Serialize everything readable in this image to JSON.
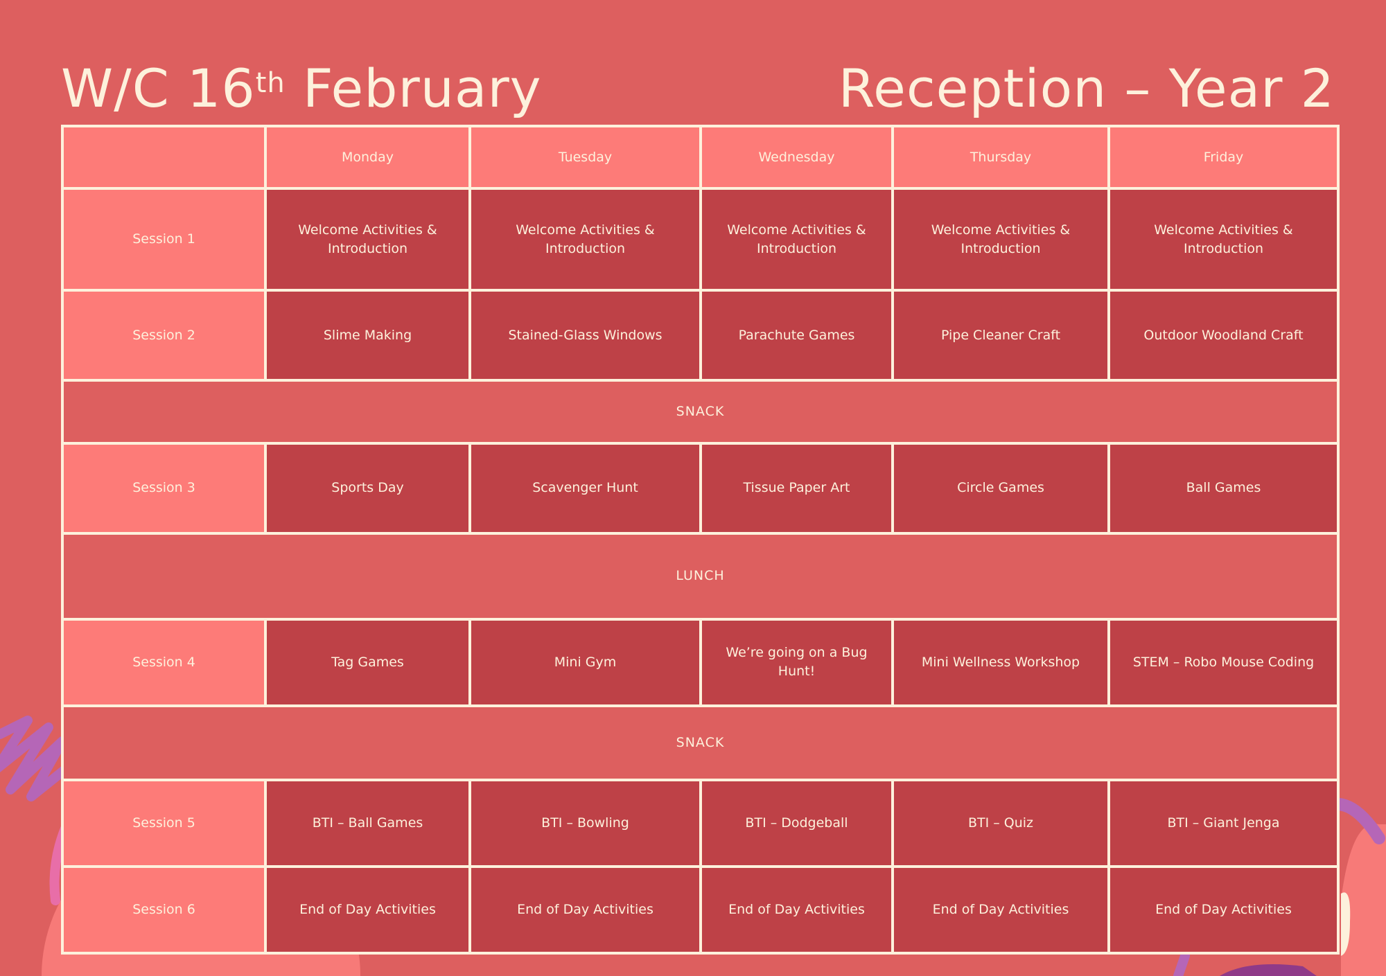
{
  "header": {
    "title_prefix": "W/C 16",
    "title_superscript": "th",
    "title_suffix": " February",
    "group": "Reception – Year 2"
  },
  "colors": {
    "background": "#dd5f5f",
    "header_cell": "#fd7b78",
    "activity_cell": "#be4147",
    "text": "#fdf1dc"
  },
  "days": [
    "Monday",
    "Tuesday",
    "Wednesday",
    "Thursday",
    "Friday"
  ],
  "rows": [
    {
      "type": "session",
      "label": "Session 1",
      "activities": [
        "Welcome Activities & Introduction",
        "Welcome Activities & Introduction",
        "Welcome Activities & Introduction",
        "Welcome Activities & Introduction",
        "Welcome Activities & Introduction"
      ]
    },
    {
      "type": "session",
      "label": "Session 2",
      "activities": [
        "Slime Making",
        "Stained-Glass Windows",
        "Parachute Games",
        "Pipe Cleaner Craft",
        "Outdoor Woodland Craft"
      ]
    },
    {
      "type": "break",
      "label": "SNACK"
    },
    {
      "type": "session",
      "label": "Session 3",
      "activities": [
        "Sports Day",
        "Scavenger Hunt",
        "Tissue Paper Art",
        "Circle Games",
        "Ball Games"
      ]
    },
    {
      "type": "break",
      "label": "LUNCH"
    },
    {
      "type": "session",
      "label": "Session 4",
      "activities": [
        "Tag Games",
        "Mini Gym",
        "We’re going on a Bug Hunt!",
        "Mini Wellness Workshop",
        "STEM – Robo Mouse Coding"
      ]
    },
    {
      "type": "break",
      "label": "SNACK"
    },
    {
      "type": "session",
      "label": "Session 5",
      "activities": [
        "BTI – Ball Games",
        "BTI – Bowling",
        "BTI – Dodgeball",
        "BTI – Quiz",
        "BTI – Giant Jenga"
      ]
    },
    {
      "type": "session",
      "label": "Session 6",
      "activities": [
        "End of Day Activities",
        "End of Day Activities",
        "End of Day Activities",
        "End of Day Activities",
        "End of Day Activities"
      ]
    }
  ]
}
